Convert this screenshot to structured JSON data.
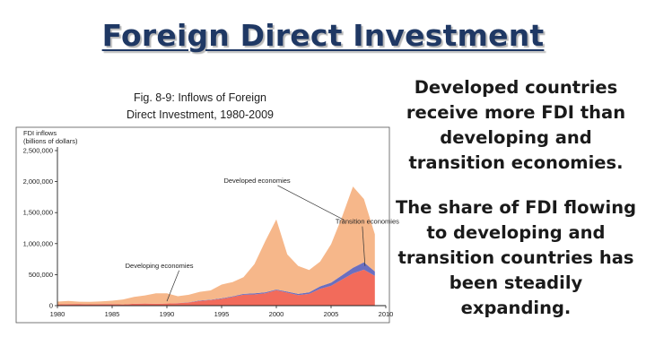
{
  "slide": {
    "title": "Foreign Direct Investment",
    "caption_line1": "Fig. 8-9: Inflows of Foreign",
    "caption_line2": "Direct Investment, 1980-2009",
    "bullets": [
      "Developed countries receive more FDI than developing and transition economies.",
      "The share of FDI flowing to developing and transition countries has been steadily expanding."
    ]
  },
  "chart_data": {
    "type": "area",
    "stacked": true,
    "ylabel_line1": "FDI inflows",
    "ylabel_line2": "(billions of dollars)",
    "xlim": [
      1980,
      2010
    ],
    "ylim": [
      0,
      2500000
    ],
    "x_ticks": [
      1980,
      1985,
      1990,
      1995,
      2000,
      2005,
      2010
    ],
    "y_ticks": [
      0,
      500000,
      1000000,
      1500000,
      2000000,
      2500000
    ],
    "y_tick_labels": [
      "0",
      "500,000",
      "1,000,000",
      "1,500,000",
      "2,000,000",
      "2,500,000"
    ],
    "x": [
      1980,
      1981,
      1982,
      1983,
      1984,
      1985,
      1986,
      1987,
      1988,
      1989,
      1990,
      1991,
      1992,
      1993,
      1994,
      1995,
      1996,
      1997,
      1998,
      1999,
      2000,
      2001,
      2002,
      2003,
      2004,
      2005,
      2006,
      2007,
      2008,
      2009
    ],
    "series": [
      {
        "name": "Developing economies",
        "color": "#f26b5b",
        "values": [
          20000,
          25000,
          28000,
          22000,
          25000,
          25000,
          20000,
          30000,
          35000,
          30000,
          35000,
          40000,
          50000,
          75000,
          90000,
          110000,
          140000,
          175000,
          180000,
          200000,
          250000,
          210000,
          170000,
          190000,
          270000,
          320000,
          420000,
          520000,
          580000,
          480000
        ]
      },
      {
        "name": "Transition economies",
        "color": "#6a6fc0",
        "values": [
          0,
          0,
          0,
          0,
          0,
          0,
          0,
          0,
          0,
          0,
          0,
          2000,
          5000,
          8000,
          6000,
          10000,
          10000,
          15000,
          20000,
          15000,
          10000,
          15000,
          20000,
          25000,
          40000,
          50000,
          70000,
          90000,
          120000,
          70000
        ]
      },
      {
        "name": "Developed economies",
        "color": "#f6b78a",
        "values": [
          45000,
          50000,
          35000,
          40000,
          45000,
          55000,
          80000,
          110000,
          130000,
          170000,
          165000,
          110000,
          120000,
          140000,
          150000,
          220000,
          230000,
          270000,
          470000,
          830000,
          1130000,
          600000,
          450000,
          360000,
          400000,
          620000,
          940000,
          1310000,
          1020000,
          600000
        ]
      }
    ],
    "annotations": [
      {
        "text": "Developed economies",
        "x": 1995.2,
        "y": 1980000,
        "target_x": 2006.2,
        "target_y": 1380000
      },
      {
        "text": "Transition economies",
        "x": 2005.4,
        "y": 1320000,
        "target_x": 2008.1,
        "target_y": 640000
      },
      {
        "text": "Developing economies",
        "x": 1986.2,
        "y": 610000,
        "target_x": 1990.0,
        "target_y": 70000
      }
    ],
    "grid": false,
    "legend": "none"
  }
}
